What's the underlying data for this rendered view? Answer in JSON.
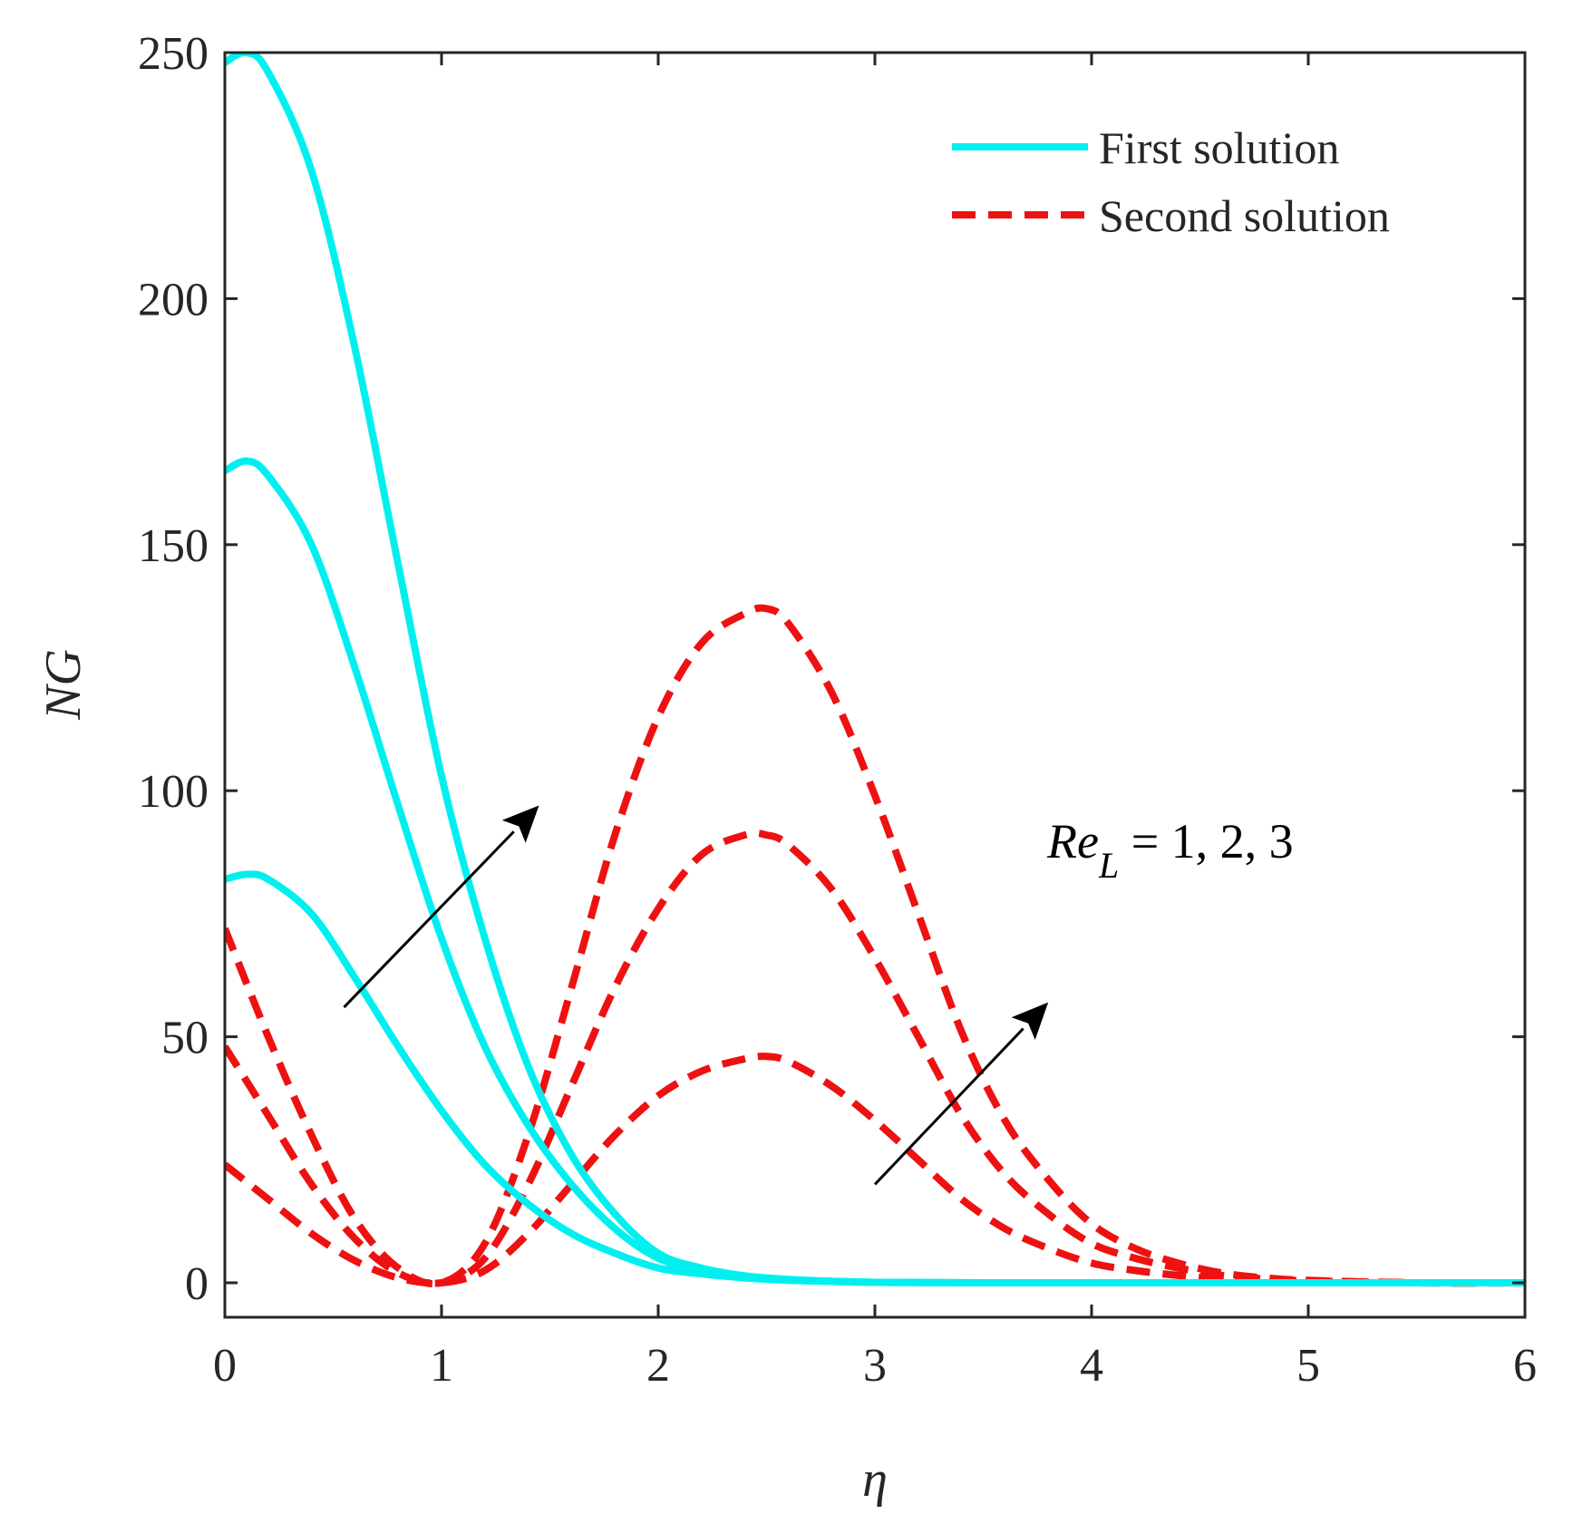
{
  "chart_data": {
    "type": "line",
    "title": "",
    "xlabel": "η",
    "ylabel": "NG",
    "xlim": [
      0,
      6
    ],
    "ylim": [
      -7,
      250
    ],
    "xticks": [
      0,
      1,
      2,
      3,
      4,
      5,
      6
    ],
    "yticks": [
      0,
      50,
      100,
      150,
      200,
      250
    ],
    "grid": false,
    "legend_position": "top-right",
    "legend": [
      {
        "label": "First solution",
        "style": "solid",
        "color": "#00F0F0"
      },
      {
        "label": "Second solution",
        "style": "dashed",
        "color": "#EE1111"
      }
    ],
    "series": [
      {
        "name": "First solution, Re_L = 1",
        "group": "First solution",
        "style": "solid",
        "color": "#00F0F0",
        "x": [
          0,
          0.1,
          0.2,
          0.4,
          0.6,
          0.8,
          1.0,
          1.2,
          1.4,
          1.6,
          1.8,
          2.0,
          2.2,
          2.4,
          2.6,
          2.8,
          3.0,
          3.5,
          4,
          5,
          6
        ],
        "y": [
          82,
          83,
          82,
          75,
          62,
          48,
          35,
          24,
          16,
          10,
          6,
          3,
          1.8,
          1,
          0.5,
          0.3,
          0.1,
          0,
          0,
          0,
          0
        ]
      },
      {
        "name": "First solution, Re_L = 2",
        "group": "First solution",
        "style": "solid",
        "color": "#00F0F0",
        "x": [
          0,
          0.1,
          0.2,
          0.4,
          0.6,
          0.8,
          1.0,
          1.2,
          1.4,
          1.6,
          1.8,
          2.0,
          2.2,
          2.4,
          2.6,
          2.8,
          3.0,
          3.5,
          4,
          5,
          6
        ],
        "y": [
          165,
          167,
          164,
          150,
          125,
          97,
          70,
          48,
          32,
          20,
          11,
          5,
          2.5,
          1.2,
          0.6,
          0.3,
          0.1,
          0,
          0,
          0,
          0
        ]
      },
      {
        "name": "First solution, Re_L = 3",
        "group": "First solution",
        "style": "solid",
        "color": "#00F0F0",
        "x": [
          0,
          0.1,
          0.2,
          0.4,
          0.6,
          0.8,
          1.0,
          1.2,
          1.4,
          1.6,
          1.8,
          2.0,
          2.2,
          2.4,
          2.6,
          2.8,
          3.0,
          3.5,
          4,
          5,
          6
        ],
        "y": [
          248,
          250,
          246,
          226,
          190,
          146,
          103,
          70,
          44,
          26,
          14,
          6,
          3,
          1.4,
          0.7,
          0.3,
          0.1,
          0,
          0,
          0,
          0
        ]
      },
      {
        "name": "Second solution, Re_L = 1",
        "group": "Second solution",
        "style": "dashed",
        "color": "#EE1111",
        "x": [
          0,
          0.2,
          0.4,
          0.6,
          0.8,
          1.0,
          1.2,
          1.4,
          1.6,
          1.8,
          2.0,
          2.2,
          2.4,
          2.5,
          2.6,
          2.8,
          3.0,
          3.2,
          3.4,
          3.6,
          3.8,
          4.0,
          4.2,
          4.4,
          4.6,
          4.8,
          5.0,
          5.5,
          6
        ],
        "y": [
          24,
          17,
          10,
          4.5,
          1,
          0,
          2.5,
          10,
          20,
          30,
          38,
          43,
          45.5,
          46,
          45,
          40,
          33,
          25,
          17,
          11,
          7,
          4,
          2.5,
          1.5,
          0.8,
          0.4,
          0.2,
          0,
          0
        ]
      },
      {
        "name": "Second solution, Re_L = 2",
        "group": "Second solution",
        "style": "dashed",
        "color": "#EE1111",
        "x": [
          0,
          0.2,
          0.4,
          0.6,
          0.8,
          1.0,
          1.2,
          1.4,
          1.6,
          1.8,
          2.0,
          2.2,
          2.4,
          2.5,
          2.6,
          2.8,
          3.0,
          3.2,
          3.4,
          3.6,
          3.8,
          4.0,
          4.2,
          4.4,
          4.6,
          4.8,
          5.0,
          5.5,
          6
        ],
        "y": [
          48,
          34,
          20,
          9,
          2,
          0,
          5,
          20,
          40,
          60,
          76,
          87,
          91,
          91,
          89,
          80,
          66,
          50,
          34,
          22,
          14,
          8,
          5,
          3,
          1.5,
          0.8,
          0.4,
          0,
          0
        ]
      },
      {
        "name": "Second solution, Re_L = 3",
        "group": "Second solution",
        "style": "dashed",
        "color": "#EE1111",
        "x": [
          0,
          0.2,
          0.4,
          0.6,
          0.8,
          1.0,
          1.2,
          1.4,
          1.6,
          1.8,
          2.0,
          2.2,
          2.4,
          2.5,
          2.6,
          2.8,
          3.0,
          3.2,
          3.4,
          3.6,
          3.8,
          4.0,
          4.2,
          4.4,
          4.6,
          4.8,
          5.0,
          5.5,
          6
        ],
        "y": [
          72,
          50,
          30,
          13,
          3,
          0,
          8,
          30,
          60,
          91,
          115,
          130,
          136,
          137,
          134,
          120,
          99,
          75,
          51,
          33,
          21,
          12,
          7,
          4,
          2,
          1,
          0.5,
          0,
          0
        ]
      }
    ],
    "annotations": [
      {
        "text_base": "Re",
        "text_sub": "L",
        "text_rest": " = 1, 2, 3",
        "x": 3.8,
        "y": 90
      },
      {
        "arrow": true,
        "from": [
          0.55,
          56
        ],
        "to": [
          1.45,
          97
        ]
      },
      {
        "arrow": true,
        "from": [
          3.0,
          20
        ],
        "to": [
          3.8,
          57
        ]
      }
    ]
  }
}
